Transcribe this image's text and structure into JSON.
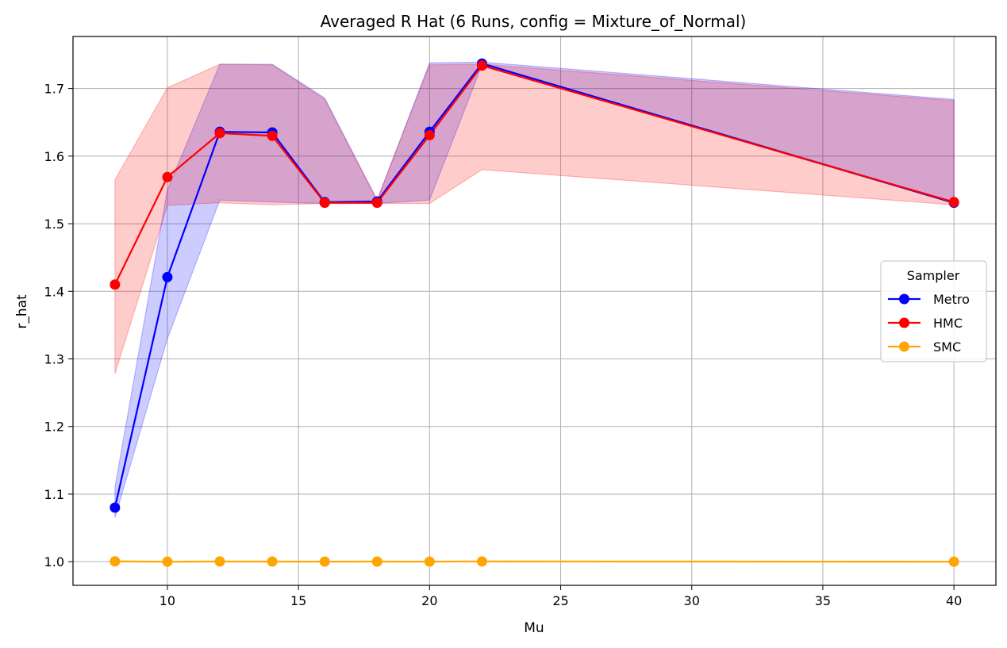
{
  "chart_data": {
    "type": "line",
    "title": "Averaged R Hat (6 Runs, config = Mixture_of_Normal)",
    "xlabel": "Mu",
    "ylabel": "r_hat",
    "xlim": [
      6.4,
      41.6
    ],
    "ylim": [
      0.965,
      1.777
    ],
    "xticks": [
      10,
      15,
      20,
      25,
      30,
      35,
      40
    ],
    "yticks": [
      1.0,
      1.1,
      1.2,
      1.3,
      1.4,
      1.5,
      1.6,
      1.7
    ],
    "grid": true,
    "legend": {
      "title": "Sampler",
      "placement": "center-right"
    },
    "x": [
      8,
      10,
      12,
      14,
      16,
      18,
      20,
      22,
      40
    ],
    "series": [
      {
        "name": "Metro",
        "color": "#0000ff",
        "values": [
          1.08,
          1.421,
          1.636,
          1.635,
          1.532,
          1.533,
          1.636,
          1.737,
          1.531
        ],
        "band_low": [
          1.065,
          1.33,
          1.535,
          1.532,
          1.53,
          1.53,
          1.535,
          1.735,
          1.53
        ],
        "band_high": [
          1.11,
          1.55,
          1.736,
          1.736,
          1.686,
          1.535,
          1.738,
          1.739,
          1.684
        ]
      },
      {
        "name": "HMC",
        "color": "#ff0000",
        "values": [
          1.41,
          1.569,
          1.634,
          1.63,
          1.531,
          1.531,
          1.631,
          1.734,
          1.532
        ],
        "band_low": [
          1.278,
          1.527,
          1.531,
          1.528,
          1.53,
          1.53,
          1.53,
          1.58,
          1.528
        ],
        "band_high": [
          1.565,
          1.701,
          1.736,
          1.735,
          1.684,
          1.535,
          1.735,
          1.736,
          1.682
        ]
      },
      {
        "name": "SMC",
        "color": "#ffa500",
        "values": [
          1.0005,
          1.0,
          1.0003,
          1.0002,
          1.0001,
          1.0002,
          1.0001,
          1.0004,
          1.0
        ]
      }
    ]
  }
}
